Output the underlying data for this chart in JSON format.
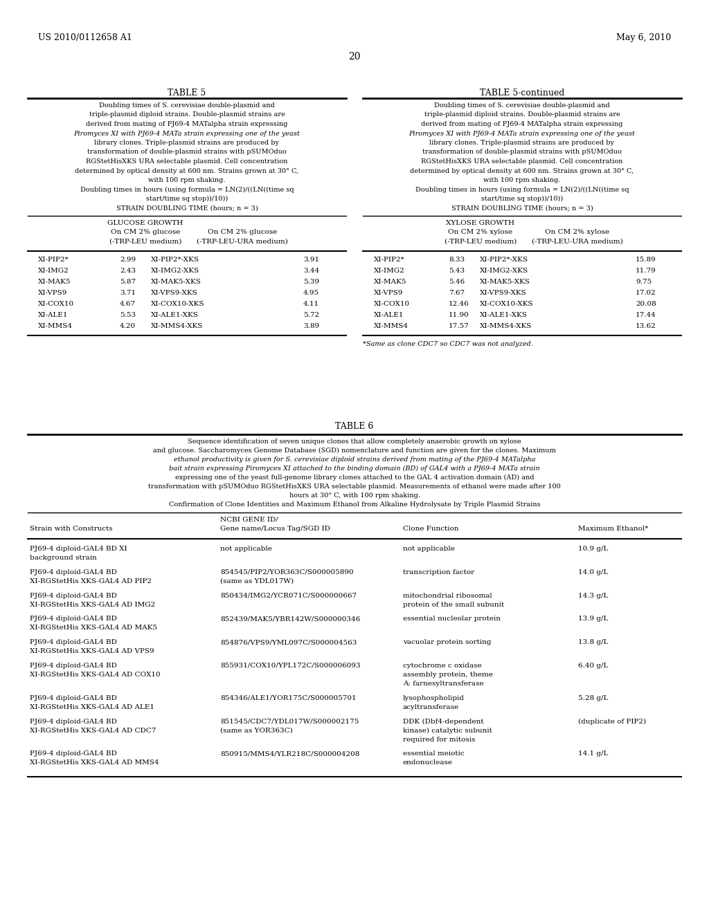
{
  "bg_color": "#ffffff",
  "header_left": "US 2010/0112658 A1",
  "header_right": "May 6, 2010",
  "page_number": "20",
  "table5_title": "TABLE 5",
  "table5cont_title": "TABLE 5-continued",
  "table5_caption_lines": [
    "Doubling times of S. cerevisiae double-plasmid and",
    "triple-plasmid diploid strains. Double-plasmid strains are",
    "derived from mating of PJ69-4 MATalpha strain expressing",
    "Piromyces XI with PJ69-4 MATa strain expressing one of the yeast",
    "library clones. Triple-plasmid strains are produced by",
    "transformation of double-plasmid strains with pSUMOduo",
    "RGStetHisXKS URA selectable plasmid. Cell concentration",
    "determined by optical density at 600 nm. Strains grown at 30° C,",
    "with 100 rpm shaking.",
    "Doubling times in hours (using formula = LN(2)/((LN((time sq",
    "start/time sq stop))/10))",
    "STRAIN DOUBLING TIME (hours; n = 3)"
  ],
  "table5_caption_italic": [
    false,
    false,
    false,
    true,
    false,
    false,
    false,
    false,
    false,
    false,
    false,
    false
  ],
  "table5_glucose_data": [
    [
      "XI-PIP2*",
      "2.99",
      "XI-PIP2*-XKS",
      "3.91"
    ],
    [
      "XI-IMG2",
      "2.43",
      "XI-IMG2-XKS",
      "3.44"
    ],
    [
      "XI-MAK5",
      "5.87",
      "XI-MAK5-XKS",
      "5.39"
    ],
    [
      "XI-VPS9",
      "3.71",
      "XI-VPS9-XKS",
      "4.95"
    ],
    [
      "XI-COX10",
      "4.67",
      "XI-COX10-XKS",
      "4.11"
    ],
    [
      "XI-ALE1",
      "5.53",
      "XI-ALE1-XKS",
      "5.72"
    ],
    [
      "XI-MMS4",
      "4.20",
      "XI-MMS4-XKS",
      "3.89"
    ]
  ],
  "table5_xylose_data": [
    [
      "XI-PIP2*",
      "8.33",
      "XI-PIP2*-XKS",
      "15.89"
    ],
    [
      "XI-IMG2",
      "5.43",
      "XI-IMG2-XKS",
      "11.79"
    ],
    [
      "XI-MAK5",
      "5.46",
      "XI-MAK5-XKS",
      "9.75"
    ],
    [
      "XI-VPS9",
      "7.67",
      "XI-VPS9-XKS",
      "17.02"
    ],
    [
      "XI-COX10",
      "12.46",
      "XI-COX10-XKS",
      "20.08"
    ],
    [
      "XI-ALE1",
      "11.90",
      "XI-ALE1-XKS",
      "17.44"
    ],
    [
      "XI-MMS4",
      "17.57",
      "XI-MMS4-XKS",
      "13.62"
    ]
  ],
  "table5_footnote": "*Same as clone CDC7 so CDC7 was not analyzed.",
  "table6_title": "TABLE 6",
  "table6_caption_lines": [
    "Sequence identification of seven unique clones that allow completely anaerobic growth on xylose",
    "and glucose. Saccharomyces Genome Database (SGD) nomenclature and function are given for the clones. Maximum",
    "ethanol productivity is given for S. cerevisiae diploid strains derived from mating of the PJ69-4 MATalpha",
    "bait strain expressing Piromyces XI attached to the binding domain (BD) of GAL4 with a PJ69-4 MATa strain",
    "expressing one of the yeast full-genome library clones attached to the GAL 4 activation domain (AD) and",
    "transformation with pSUMOduo RGStetHisXKS URA selectable plasmid. Measurements of ethanol were made after 100",
    "hours at 30° C, with 100 rpm shaking.",
    "Confirmation of Clone Identities and Maximum Ethanol from Alkaline Hydrolysate by Triple Plasmid Strains"
  ],
  "table6_caption_italic": [
    false,
    false,
    true,
    true,
    false,
    false,
    false,
    false
  ],
  "table6_data": [
    {
      "strain": [
        "PJ69-4 diploid-GAL4 BD XI",
        "background strain"
      ],
      "ncbi": [
        "not applicable"
      ],
      "func": [
        "not applicable"
      ],
      "ethanol": "10.9 g/L"
    },
    {
      "strain": [
        "PJ69-4 diploid-GAL4 BD",
        "XI-RGStetHis XKS-GAL4 AD PIP2"
      ],
      "ncbi": [
        "854545/PIP2/YOR363C/S000005890",
        "(same as YDL017W)"
      ],
      "func": [
        "transcription factor"
      ],
      "ethanol": "14.0 g/L"
    },
    {
      "strain": [
        "PJ69-4 diploid-GAL4 BD",
        "XI-RGStetHis XKS-GAL4 AD IMG2"
      ],
      "ncbi": [
        "850434/IMG2/YCR071C/S000000667"
      ],
      "func": [
        "mitochondrial ribosomal",
        "protein of the small subunit"
      ],
      "ethanol": "14.3 g/L"
    },
    {
      "strain": [
        "PJ69-4 diploid-GAL4 BD",
        "XI-RGStetHis XKS-GAL4 AD MAK5"
      ],
      "ncbi": [
        "852439/MAK5/YBR142W/S000000346"
      ],
      "func": [
        "essential nucleolar protein"
      ],
      "ethanol": "13.9 g/L"
    },
    {
      "strain": [
        "PJ69-4 diploid-GAL4 BD",
        "XI-RGStetHis XKS-GAL4 AD VPS9"
      ],
      "ncbi": [
        "854876/VPS9/YML097C/S000004563"
      ],
      "func": [
        "vacuolar protein sorting"
      ],
      "ethanol": "13.8 g/L"
    },
    {
      "strain": [
        "PJ69-4 diploid-GAL4 BD",
        "XI-RGStetHis XKS-GAL4 AD COX10"
      ],
      "ncbi": [
        "855931/COX10/YPL172C/S000006093"
      ],
      "func": [
        "cytochrome c oxidase",
        "assembly protein, theme",
        "A: farnesyltransferase"
      ],
      "ethanol": "6.40 g/L"
    },
    {
      "strain": [
        "PJ69-4 diploid-GAL4 BD",
        "XI-RGStetHis XKS-GAL4 AD ALE1"
      ],
      "ncbi": [
        "854346/ALE1/YOR175C/S000005701"
      ],
      "func": [
        "lysophospholipid",
        "acyltransferase"
      ],
      "ethanol": "5.28 g/L"
    },
    {
      "strain": [
        "PJ69-4 diploid-GAL4 BD",
        "XI-RGStetHis XKS-GAL4 AD CDC7"
      ],
      "ncbi": [
        "851545/CDC7/YDL017W/S000002175",
        "(same as YOR363C)"
      ],
      "func": [
        "DDK (Dbf4-dependent",
        "kinase) catalytic subunit",
        "required for mitosis"
      ],
      "ethanol": "(duplicate of PIP2)"
    },
    {
      "strain": [
        "PJ69-4 diploid-GAL4 BD",
        "XI-RGStetHis XKS-GAL4 AD MMS4"
      ],
      "ncbi": [
        "850915/MMS4/YLR218C/S000004208"
      ],
      "func": [
        "essential meiotic",
        "endonuclease"
      ],
      "ethanol": "14.1 g/L"
    }
  ]
}
